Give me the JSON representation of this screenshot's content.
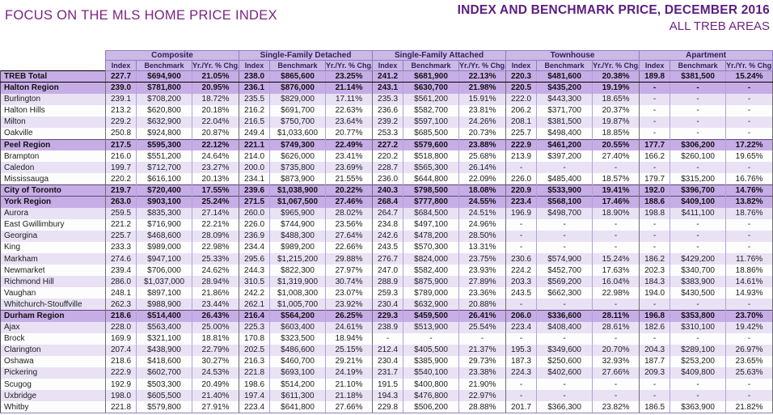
{
  "page": {
    "left_title": "FOCUS ON THE MLS HOME PRICE INDEX",
    "right_title": "INDEX AND BENCHMARK PRICE, DECEMBER 2016",
    "right_subtitle": "ALL TREB AREAS"
  },
  "colors": {
    "title_left": "#7b2282",
    "title_right": "#5b1d80",
    "header_bg": "#cbb9e6",
    "summary_row_bg": "#c7ade6",
    "alt_row_bg": "#e9e2f5",
    "grid_inner": "#b4a1d6",
    "grid_group": "#6f6f6f"
  },
  "table": {
    "groups": [
      "Composite",
      "Single-Family Detached",
      "Single-Family Attached",
      "Townhouse",
      "Apartment"
    ],
    "sub_headers": [
      "Index",
      "Benchmark",
      "Yr./Yr. % Chg."
    ],
    "rows": [
      {
        "name": "TREB Total",
        "type": "summary",
        "cells": [
          "227.7",
          "$694,900",
          "21.05%",
          "238.0",
          "$865,600",
          "23.25%",
          "241.2",
          "$681,900",
          "22.13%",
          "220.3",
          "$481,600",
          "20.38%",
          "189.8",
          "$381,500",
          "15.24%"
        ]
      },
      {
        "name": "Halton Region",
        "type": "summary",
        "cells": [
          "239.0",
          "$781,800",
          "20.95%",
          "236.1",
          "$876,000",
          "21.14%",
          "243.1",
          "$630,700",
          "21.98%",
          "220.5",
          "$435,200",
          "19.19%",
          "-",
          "-",
          "-"
        ]
      },
      {
        "name": "Burlington",
        "type": "sub",
        "cells": [
          "239.1",
          "$708,200",
          "18.72%",
          "235.5",
          "$829,000",
          "17.11%",
          "235.3",
          "$561,200",
          "15.91%",
          "222.0",
          "$443,300",
          "18.65%",
          "-",
          "-",
          "-"
        ]
      },
      {
        "name": "Halton Hills",
        "type": "sub",
        "cells": [
          "213.2",
          "$620,800",
          "20.18%",
          "216.2",
          "$691,700",
          "22.63%",
          "236.6",
          "$582,700",
          "23.81%",
          "206.2",
          "$371,700",
          "20.37%",
          "-",
          "-",
          "-"
        ]
      },
      {
        "name": "Milton",
        "type": "sub",
        "cells": [
          "229.2",
          "$632,900",
          "22.04%",
          "216.5",
          "$750,700",
          "23.64%",
          "239.2",
          "$597,100",
          "24.26%",
          "208.1",
          "$381,500",
          "19.87%",
          "-",
          "-",
          "-"
        ]
      },
      {
        "name": "Oakville",
        "type": "sub",
        "cells": [
          "250.8",
          "$924,800",
          "20.87%",
          "249.4",
          "$1,033,600",
          "20.77%",
          "253.3",
          "$685,500",
          "20.73%",
          "225.7",
          "$498,400",
          "18.85%",
          "-",
          "-",
          "-"
        ]
      },
      {
        "name": "Peel Region",
        "type": "summary",
        "cells": [
          "217.5",
          "$595,300",
          "22.12%",
          "221.1",
          "$749,300",
          "22.49%",
          "227.2",
          "$579,600",
          "23.88%",
          "222.9",
          "$461,200",
          "20.55%",
          "177.7",
          "$306,200",
          "17.22%"
        ]
      },
      {
        "name": "Brampton",
        "type": "sub",
        "cells": [
          "216.0",
          "$551,200",
          "24.64%",
          "214.0",
          "$626,000",
          "23.41%",
          "220.2",
          "$518,800",
          "25.68%",
          "213.9",
          "$397,200",
          "27.40%",
          "166.2",
          "$260,100",
          "19.65%"
        ]
      },
      {
        "name": "Caledon",
        "type": "sub",
        "cells": [
          "199.7",
          "$712,700",
          "23.27%",
          "200.0",
          "$735,800",
          "23.69%",
          "228.7",
          "$565,300",
          "26.14%",
          "-",
          "-",
          "-",
          "-",
          "-",
          "-"
        ]
      },
      {
        "name": "Mississauga",
        "type": "sub",
        "cells": [
          "220.2",
          "$616,100",
          "20.13%",
          "234.1",
          "$873,900",
          "21.55%",
          "236.0",
          "$644,800",
          "22.09%",
          "226.0",
          "$485,400",
          "18.57%",
          "179.7",
          "$315,200",
          "16.76%"
        ]
      },
      {
        "name": "City of Toronto",
        "type": "summary",
        "cells": [
          "219.7",
          "$720,400",
          "17.55%",
          "239.6",
          "$1,038,900",
          "20.22%",
          "240.3",
          "$798,500",
          "18.08%",
          "220.9",
          "$533,900",
          "19.41%",
          "192.0",
          "$396,700",
          "14.76%"
        ]
      },
      {
        "name": "York Region",
        "type": "summary",
        "cells": [
          "263.0",
          "$903,100",
          "25.24%",
          "271.5",
          "$1,067,500",
          "27.46%",
          "268.4",
          "$777,800",
          "24.55%",
          "223.4",
          "$568,100",
          "17.46%",
          "188.6",
          "$409,100",
          "13.82%"
        ]
      },
      {
        "name": "Aurora",
        "type": "sub",
        "cells": [
          "259.5",
          "$835,300",
          "27.14%",
          "260.0",
          "$965,900",
          "28.02%",
          "264.7",
          "$684,500",
          "24.51%",
          "196.9",
          "$498,700",
          "18.90%",
          "198.8",
          "$411,100",
          "18.76%"
        ]
      },
      {
        "name": "East Gwillimbury",
        "type": "sub",
        "cells": [
          "221.2",
          "$716,900",
          "22.21%",
          "226.0",
          "$744,900",
          "23.56%",
          "234.8",
          "$497,100",
          "24.96%",
          "-",
          "-",
          "-",
          "-",
          "-",
          "-"
        ]
      },
      {
        "name": "Georgina",
        "type": "sub",
        "cells": [
          "225.7",
          "$468,600",
          "28.09%",
          "236.9",
          "$488,300",
          "27.64%",
          "242.6",
          "$478,200",
          "28.50%",
          "-",
          "-",
          "-",
          "-",
          "-",
          "-"
        ]
      },
      {
        "name": "King",
        "type": "sub",
        "cells": [
          "233.3",
          "$989,000",
          "22.98%",
          "234.4",
          "$989,200",
          "22.66%",
          "243.5",
          "$570,300",
          "13.31%",
          "-",
          "-",
          "-",
          "-",
          "-",
          "-"
        ]
      },
      {
        "name": "Markham",
        "type": "sub",
        "cells": [
          "274.6",
          "$947,100",
          "25.33%",
          "295.6",
          "$1,215,200",
          "29.88%",
          "276.7",
          "$824,000",
          "23.75%",
          "230.6",
          "$574,900",
          "15.24%",
          "186.2",
          "$429,200",
          "11.76%"
        ]
      },
      {
        "name": "Newmarket",
        "type": "sub",
        "cells": [
          "239.4",
          "$706,000",
          "24.62%",
          "244.3",
          "$822,300",
          "27.97%",
          "247.0",
          "$582,400",
          "23.93%",
          "224.2",
          "$452,700",
          "17.63%",
          "202.3",
          "$340,700",
          "18.86%"
        ]
      },
      {
        "name": "Richmond Hill",
        "type": "sub",
        "cells": [
          "286.0",
          "$1,037,000",
          "28.94%",
          "310.5",
          "$1,319,900",
          "30.74%",
          "288.9",
          "$875,900",
          "27.89%",
          "203.3",
          "$569,200",
          "16.04%",
          "184.3",
          "$383,900",
          "14.61%"
        ]
      },
      {
        "name": "Vaughan",
        "type": "sub",
        "cells": [
          "248.1",
          "$897,100",
          "21.86%",
          "242.2",
          "$1,008,300",
          "23.07%",
          "259.3",
          "$789,000",
          "23.36%",
          "243.5",
          "$662,300",
          "22.98%",
          "194.0",
          "$430,500",
          "14.93%"
        ]
      },
      {
        "name": "Whitchurch-Stouffville",
        "type": "sub",
        "cells": [
          "262.3",
          "$988,900",
          "23.44%",
          "262.1",
          "$1,005,700",
          "23.92%",
          "230.4",
          "$632,900",
          "20.88%",
          "-",
          "-",
          "-",
          "-",
          "-",
          "-"
        ]
      },
      {
        "name": "Durham Region",
        "type": "summary",
        "cells": [
          "218.6",
          "$514,400",
          "26.43%",
          "216.4",
          "$564,200",
          "26.25%",
          "229.3",
          "$459,500",
          "26.41%",
          "206.0",
          "$336,600",
          "28.11%",
          "196.8",
          "$353,800",
          "23.70%"
        ]
      },
      {
        "name": "Ajax",
        "type": "sub",
        "cells": [
          "228.0",
          "$563,400",
          "25.00%",
          "225.3",
          "$603,400",
          "24.61%",
          "238.9",
          "$513,900",
          "25.54%",
          "223.4",
          "$408,400",
          "28.61%",
          "182.6",
          "$310,100",
          "19.42%"
        ]
      },
      {
        "name": "Brock",
        "type": "sub",
        "cells": [
          "169.9",
          "$321,100",
          "18.81%",
          "170.8",
          "$323,500",
          "18.94%",
          "-",
          "-",
          "-",
          "-",
          "-",
          "-",
          "-",
          "-",
          "-"
        ]
      },
      {
        "name": "Clarington",
        "type": "sub",
        "cells": [
          "207.4",
          "$438,900",
          "22.79%",
          "202.5",
          "$486,600",
          "25.15%",
          "212.4",
          "$405,500",
          "21.37%",
          "195.3",
          "$349,600",
          "20.70%",
          "204.3",
          "$289,100",
          "26.97%"
        ]
      },
      {
        "name": "Oshawa",
        "type": "sub",
        "cells": [
          "218.6",
          "$418,600",
          "30.27%",
          "216.3",
          "$460,700",
          "29.21%",
          "230.4",
          "$385,900",
          "29.73%",
          "187.3",
          "$250,600",
          "32.93%",
          "187.7",
          "$253,200",
          "23.65%"
        ]
      },
      {
        "name": "Pickering",
        "type": "sub",
        "cells": [
          "222.9",
          "$602,700",
          "24.53%",
          "221.8",
          "$693,100",
          "24.19%",
          "231.7",
          "$540,100",
          "23.38%",
          "224.3",
          "$402,600",
          "27.66%",
          "209.3",
          "$409,800",
          "25.63%"
        ]
      },
      {
        "name": "Scugog",
        "type": "sub",
        "cells": [
          "192.9",
          "$503,300",
          "20.49%",
          "198.6",
          "$514,200",
          "21.10%",
          "191.5",
          "$400,800",
          "21.90%",
          "-",
          "-",
          "-",
          "-",
          "-",
          "-"
        ]
      },
      {
        "name": "Uxbridge",
        "type": "sub",
        "cells": [
          "198.0",
          "$605,500",
          "21.40%",
          "197.4",
          "$611,300",
          "21.18%",
          "194.3",
          "$476,800",
          "22.97%",
          "-",
          "-",
          "-",
          "-",
          "-",
          "-"
        ]
      },
      {
        "name": "Whitby",
        "type": "sub",
        "cells": [
          "221.8",
          "$579,800",
          "27.91%",
          "223.4",
          "$641,800",
          "27.66%",
          "229.8",
          "$506,200",
          "28.88%",
          "201.7",
          "$366,300",
          "23.82%",
          "186.5",
          "$363,900",
          "21.82%"
        ]
      }
    ]
  }
}
